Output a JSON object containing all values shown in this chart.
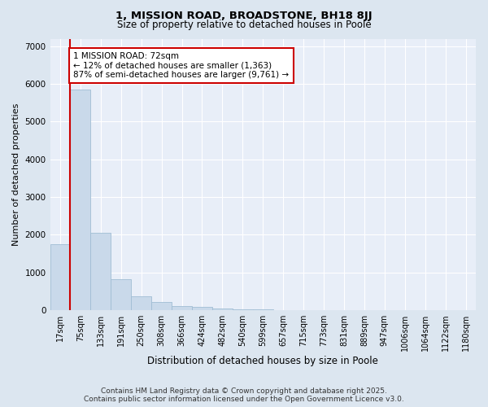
{
  "title_line1": "1, MISSION ROAD, BROADSTONE, BH18 8JJ",
  "title_line2": "Size of property relative to detached houses in Poole",
  "xlabel": "Distribution of detached houses by size in Poole",
  "ylabel": "Number of detached properties",
  "categories": [
    "17sqm",
    "75sqm",
    "133sqm",
    "191sqm",
    "250sqm",
    "308sqm",
    "366sqm",
    "424sqm",
    "482sqm",
    "540sqm",
    "599sqm",
    "657sqm",
    "715sqm",
    "773sqm",
    "831sqm",
    "889sqm",
    "947sqm",
    "1006sqm",
    "1064sqm",
    "1122sqm",
    "1180sqm"
  ],
  "values": [
    1750,
    5850,
    2050,
    830,
    370,
    220,
    120,
    80,
    55,
    25,
    18,
    10,
    6,
    3,
    2,
    1,
    0,
    0,
    0,
    0,
    0
  ],
  "bar_color": "#c9d9ea",
  "bar_edge_color": "#a0bdd4",
  "vline_x": 0.5,
  "vline_color": "#cc0000",
  "annotation_text": "1 MISSION ROAD: 72sqm\n← 12% of detached houses are smaller (1,363)\n87% of semi-detached houses are larger (9,761) →",
  "annotation_box_facecolor": "#ffffff",
  "annotation_box_edge": "#cc0000",
  "ylim": [
    0,
    7200
  ],
  "yticks": [
    0,
    1000,
    2000,
    3000,
    4000,
    5000,
    6000,
    7000
  ],
  "footer_line1": "Contains HM Land Registry data © Crown copyright and database right 2025.",
  "footer_line2": "Contains public sector information licensed under the Open Government Licence v3.0.",
  "fig_bg_color": "#dce6f0",
  "plot_bg_color": "#e8eef8",
  "grid_color": "#ffffff",
  "title_fontsize": 9.5,
  "subtitle_fontsize": 8.5,
  "ylabel_fontsize": 8,
  "xlabel_fontsize": 8.5,
  "tick_fontsize": 7,
  "annot_fontsize": 7.5,
  "footer_fontsize": 6.5
}
